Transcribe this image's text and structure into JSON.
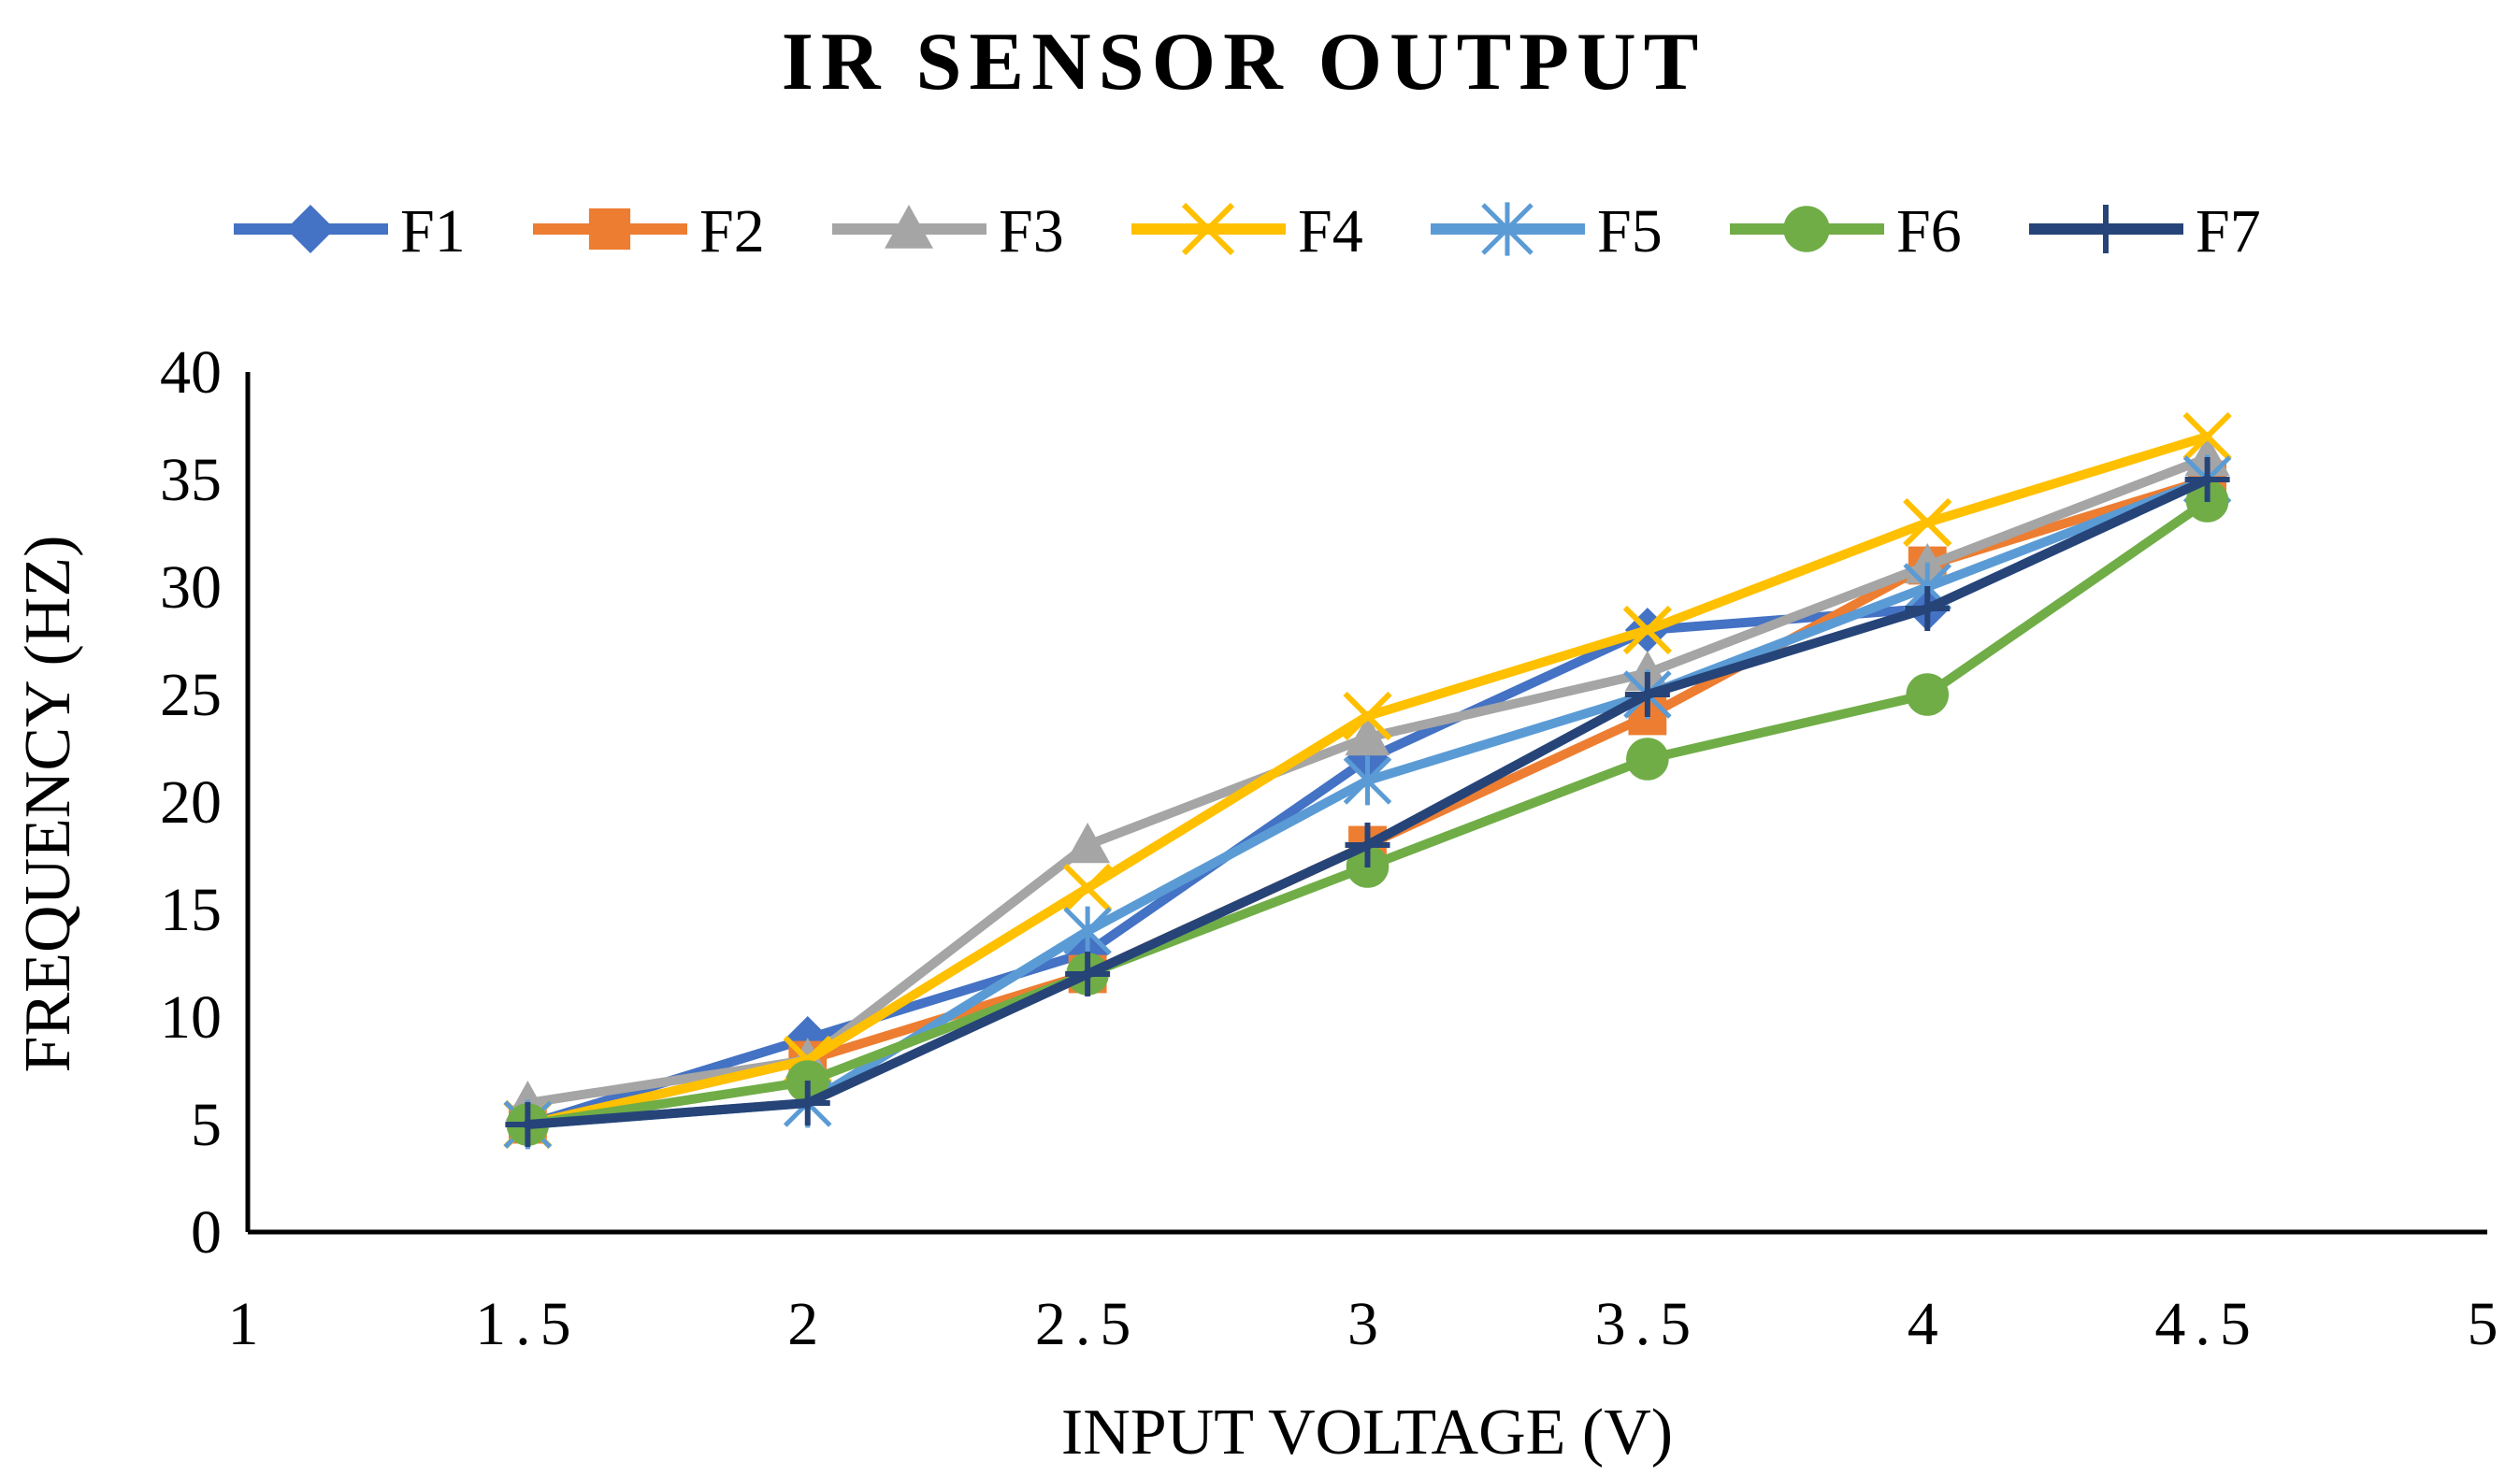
{
  "chart_data": {
    "type": "line",
    "title": "IR SENSOR OUTPUT",
    "xlabel": "INPUT VOLTAGE (V)",
    "ylabel": "FREQUENCY (HZ)",
    "xlim": [
      1,
      5
    ],
    "ylim": [
      0,
      40
    ],
    "x_ticks": [
      "1",
      "1.5",
      "2",
      "2.5",
      "3",
      "3.5",
      "4",
      "4.5",
      "5"
    ],
    "y_ticks": [
      "0",
      "5",
      "10",
      "15",
      "20",
      "25",
      "30",
      "35",
      "40"
    ],
    "grid": false,
    "legend_position": "top",
    "x": [
      1.5,
      2,
      2.5,
      3,
      3.5,
      4,
      4.5
    ],
    "series": [
      {
        "name": "F1",
        "color": "#4472C4",
        "marker": "diamond",
        "values": [
          5,
          9,
          13,
          22,
          28,
          29,
          35
        ]
      },
      {
        "name": "F2",
        "color": "#ED7D31",
        "marker": "square",
        "values": [
          5,
          8,
          12,
          18,
          24,
          31,
          35
        ]
      },
      {
        "name": "F3",
        "color": "#A5A5A5",
        "marker": "triangle",
        "values": [
          6,
          8,
          18,
          23,
          26,
          31,
          36
        ]
      },
      {
        "name": "F4",
        "color": "#FFC000",
        "marker": "x",
        "values": [
          5,
          8,
          16,
          24,
          28,
          33,
          37
        ]
      },
      {
        "name": "F5",
        "color": "#5B9BD5",
        "marker": "asterisk",
        "values": [
          5,
          6,
          14,
          21,
          25,
          30,
          35
        ]
      },
      {
        "name": "F6",
        "color": "#70AD47",
        "marker": "circle",
        "values": [
          5,
          7,
          12,
          17,
          22,
          25,
          34
        ]
      },
      {
        "name": "F7",
        "color": "#264478",
        "marker": "plus",
        "values": [
          5,
          6,
          12,
          18,
          25,
          29,
          35
        ]
      }
    ]
  }
}
